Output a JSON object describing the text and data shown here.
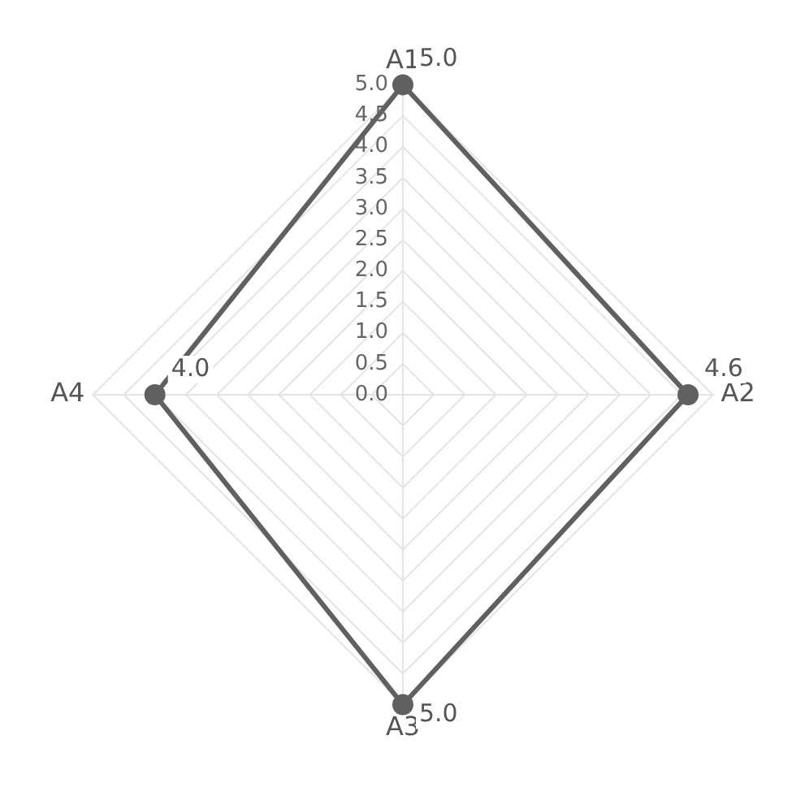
{
  "chart_data": {
    "type": "radar",
    "categories": [
      "A1",
      "A2",
      "A3",
      "A4"
    ],
    "series": [
      {
        "color": "#606060",
        "values": [
          5.0,
          4.6,
          5.0,
          4.0
        ],
        "value_labels": [
          "5.0",
          "4.6",
          "5.0",
          "4.0"
        ]
      }
    ],
    "ylim": [
      0,
      5
    ],
    "yticks": [
      {
        "value": 0,
        "label": "0.0"
      },
      {
        "value": 0.5,
        "label": "0.5"
      },
      {
        "value": 1,
        "label": "1.0"
      },
      {
        "value": 1.5,
        "label": "1.5"
      },
      {
        "value": 2,
        "label": "2.0"
      },
      {
        "value": 2.5,
        "label": "2.5"
      },
      {
        "value": 3,
        "label": "3.0"
      },
      {
        "value": 3.5,
        "label": "3.5"
      },
      {
        "value": 4,
        "label": "4.0"
      },
      {
        "value": 4.5,
        "label": "4.5"
      },
      {
        "value": 5,
        "label": "5.0"
      }
    ],
    "grid": true,
    "legend": false,
    "marker": "circle"
  }
}
